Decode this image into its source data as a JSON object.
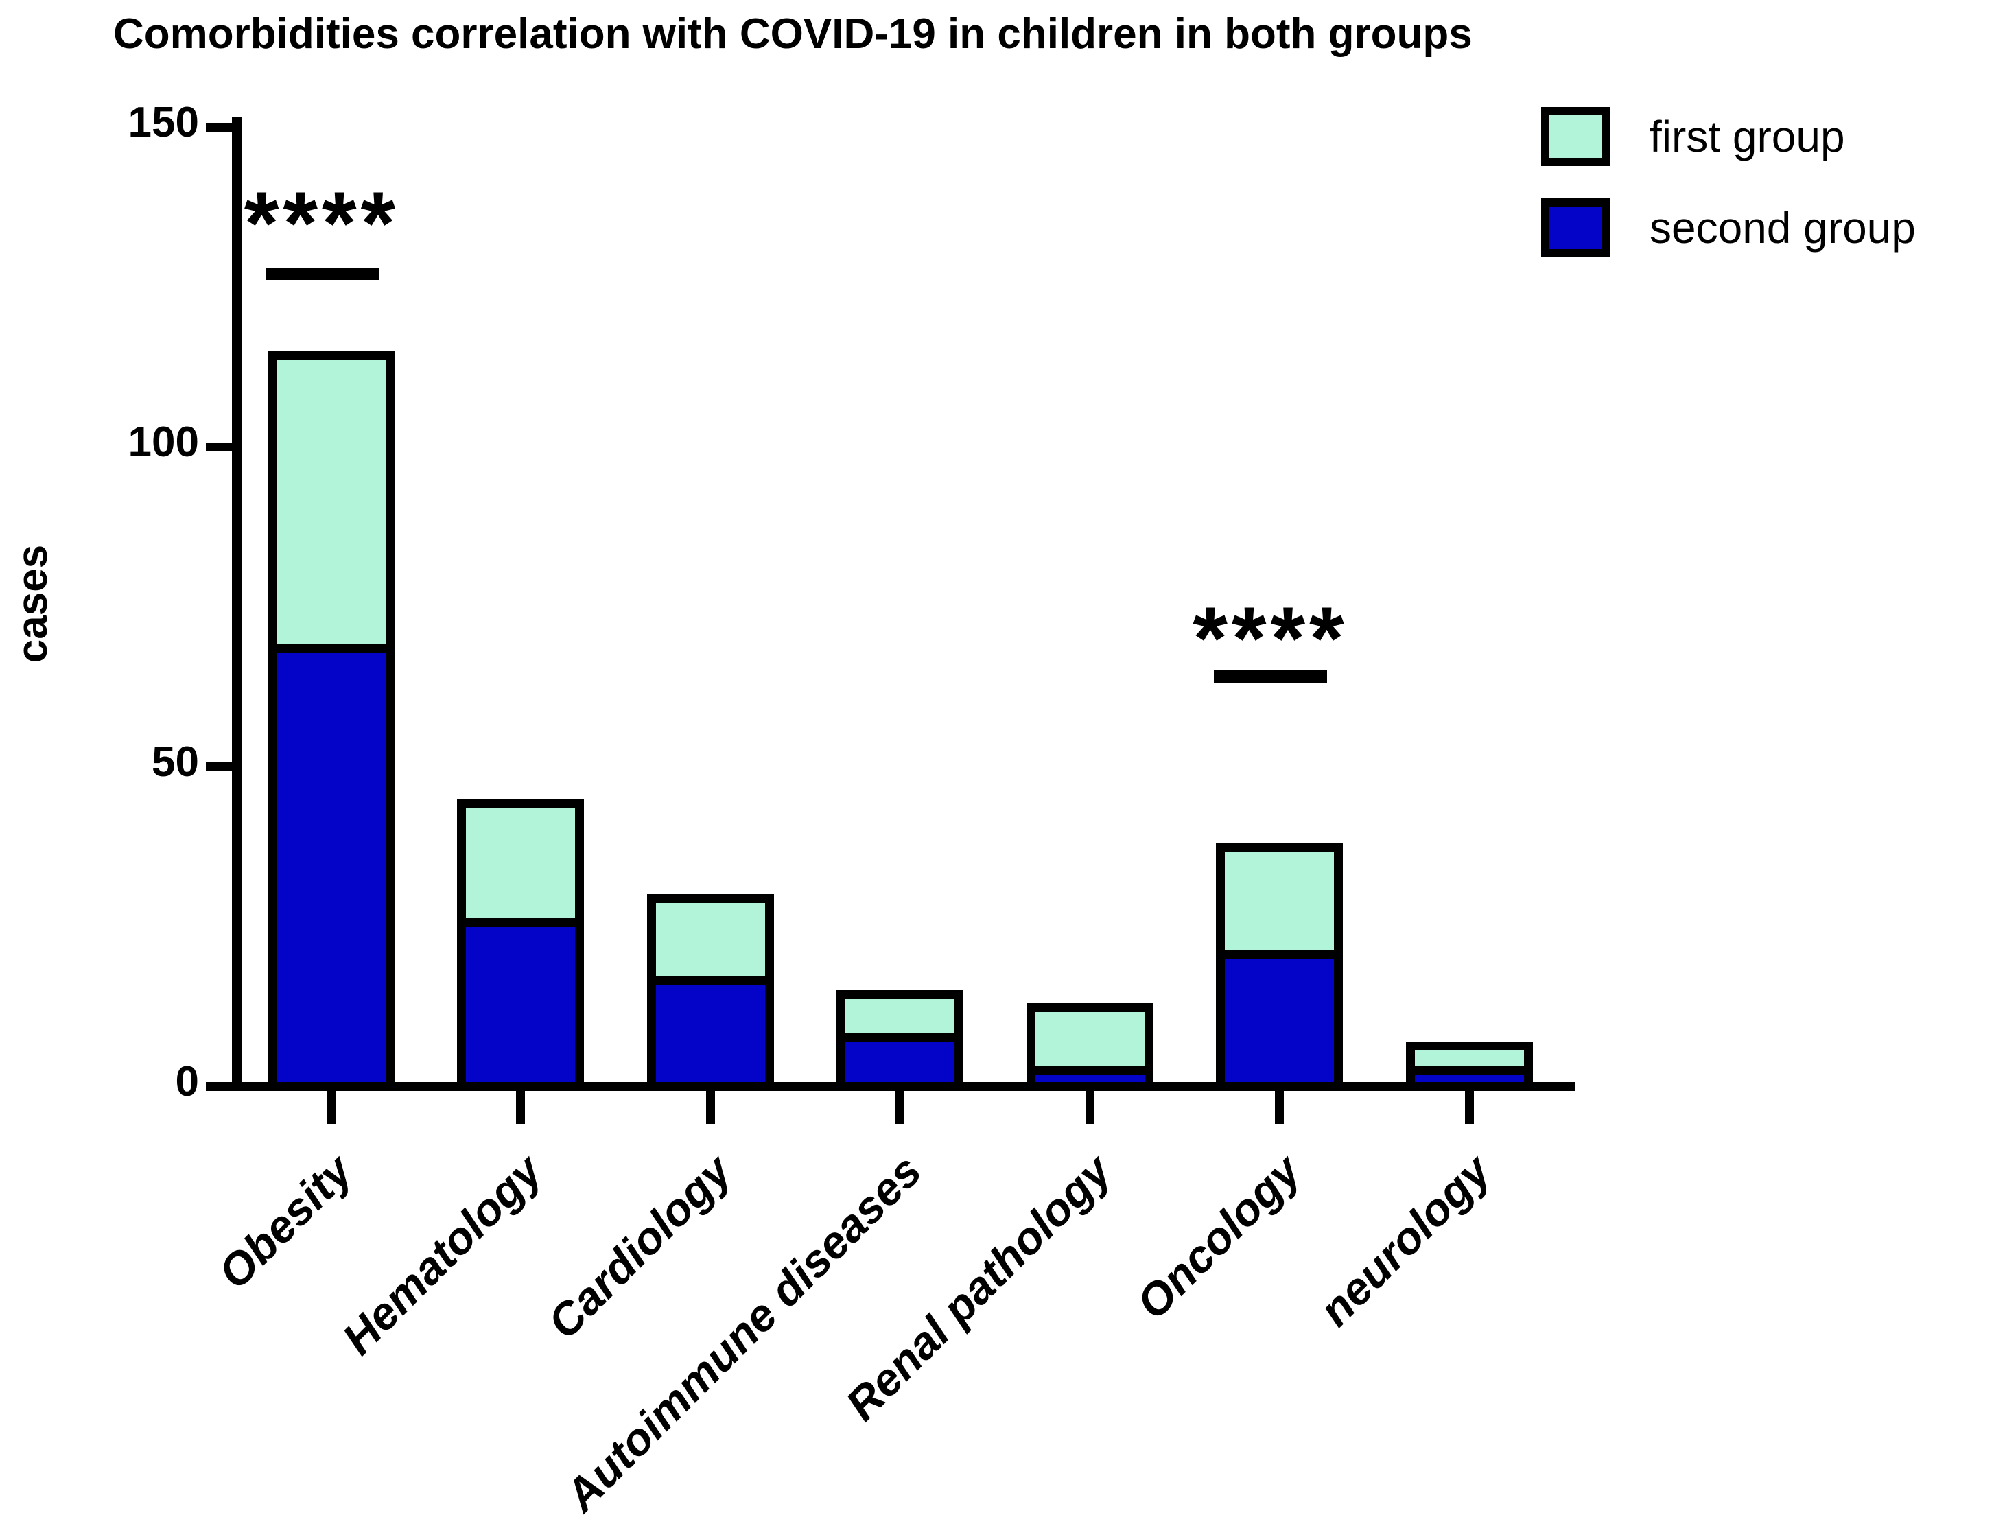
{
  "title": "Comorbidities correlation with COVID-19 in children in both groups",
  "ylabel": "cases",
  "colors": {
    "first_group": "#b2f4da",
    "second_group": "#0404c8",
    "axis": "#000000"
  },
  "legend": {
    "position": "top-right",
    "items": [
      {
        "label": "first group",
        "color": "#b2f4da"
      },
      {
        "label": "second group",
        "color": "#0404c8"
      }
    ]
  },
  "chart_data": {
    "type": "bar",
    "stacked": true,
    "title": "Comorbidities correlation with COVID-19 in children in both groups",
    "xlabel": "",
    "ylabel": "cases",
    "ylim": [
      0,
      150
    ],
    "yticks": [
      0,
      50,
      100,
      150
    ],
    "grid": false,
    "categories": [
      "Obesity",
      "Hematology",
      "Cardiology",
      "Autoimmune diseases",
      "Renal pathology",
      "Oncology",
      "neurology"
    ],
    "series": [
      {
        "name": "second group",
        "color": "#0404c8",
        "stack_order": "bottom",
        "values": [
          70,
          27,
          18,
          9,
          4,
          22,
          4
        ]
      },
      {
        "name": "first group",
        "color": "#b2f4da",
        "stack_order": "top",
        "values": [
          45,
          18,
          12,
          6,
          9,
          16,
          3
        ]
      }
    ],
    "totals": [
      115,
      45,
      30,
      15,
      13,
      38,
      7
    ],
    "annotations": [
      {
        "category": "Obesity",
        "text": "****",
        "line_y_value": 128,
        "stars_top_value": 142
      },
      {
        "category": "Oncology",
        "text": "****",
        "line_y_value": 65,
        "stars_top_value": 77
      }
    ]
  }
}
